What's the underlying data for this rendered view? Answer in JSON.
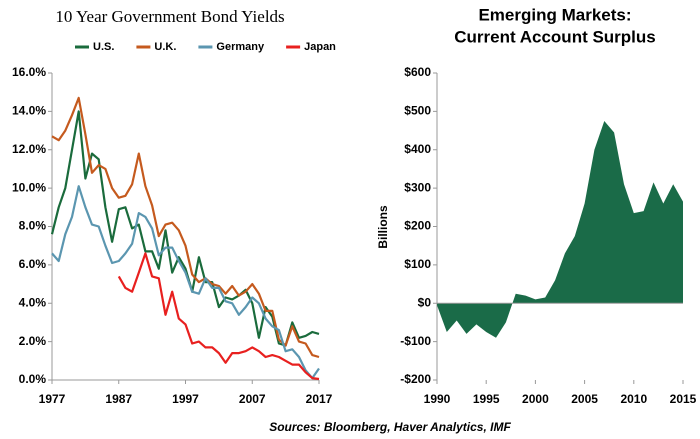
{
  "chart_data": [
    {
      "type": "line",
      "title": "10 Year Government Bond Yields",
      "x": [
        1977,
        1978,
        1979,
        1980,
        1981,
        1982,
        1983,
        1984,
        1985,
        1986,
        1987,
        1988,
        1989,
        1990,
        1991,
        1992,
        1993,
        1994,
        1995,
        1996,
        1997,
        1998,
        1999,
        2000,
        2001,
        2002,
        2003,
        2004,
        2005,
        2006,
        2007,
        2008,
        2009,
        2010,
        2011,
        2012,
        2013,
        2014,
        2015,
        2016,
        2017
      ],
      "xlim": [
        1977,
        2017
      ],
      "xticks": [
        1977,
        1987,
        1997,
        2007,
        2017
      ],
      "ylim": [
        0,
        16
      ],
      "yticks": [
        {
          "value": 0,
          "label": "0.0%"
        },
        {
          "value": 2,
          "label": "2.0%"
        },
        {
          "value": 4,
          "label": "4.0%"
        },
        {
          "value": 6,
          "label": "6.0%"
        },
        {
          "value": 8,
          "label": "8.0%"
        },
        {
          "value": 10,
          "label": "10.0%"
        },
        {
          "value": 12,
          "label": "12.0%"
        },
        {
          "value": 14,
          "label": "14.0%"
        },
        {
          "value": 16,
          "label": "16.0%"
        }
      ],
      "legend": "top",
      "series": [
        {
          "name": "U.S.",
          "color": "#1a6b3c",
          "values": [
            7.6,
            9.0,
            10.0,
            12.0,
            14.0,
            10.5,
            11.8,
            11.5,
            9.0,
            7.2,
            8.9,
            9.0,
            7.9,
            8.1,
            6.7,
            6.7,
            5.8,
            7.8,
            5.6,
            6.4,
            5.8,
            4.6,
            6.4,
            5.1,
            5.1,
            3.8,
            4.3,
            4.2,
            4.4,
            4.7,
            4.0,
            2.2,
            3.8,
            3.3,
            1.9,
            1.8,
            3.0,
            2.2,
            2.3,
            2.5,
            2.4
          ]
        },
        {
          "name": "U.K.",
          "color": "#c55a1e",
          "values": [
            12.7,
            12.5,
            13.0,
            13.8,
            14.7,
            12.8,
            10.8,
            11.2,
            11.0,
            10.0,
            9.5,
            9.6,
            10.2,
            11.8,
            10.1,
            9.1,
            7.5,
            8.1,
            8.2,
            7.8,
            7.0,
            5.5,
            5.1,
            5.3,
            5.0,
            4.9,
            4.5,
            4.9,
            4.4,
            4.6,
            5.0,
            4.5,
            3.6,
            3.6,
            2.1,
            1.8,
            2.8,
            2.0,
            1.9,
            1.3,
            1.2
          ]
        },
        {
          "name": "Germany",
          "color": "#5b96b0",
          "values": [
            6.6,
            6.2,
            7.6,
            8.5,
            10.1,
            9.0,
            8.1,
            8.0,
            7.0,
            6.1,
            6.2,
            6.6,
            7.1,
            8.7,
            8.5,
            7.9,
            6.5,
            6.9,
            6.9,
            6.2,
            5.6,
            4.6,
            4.5,
            5.3,
            4.8,
            4.8,
            4.1,
            4.0,
            3.4,
            3.8,
            4.3,
            4.0,
            3.2,
            2.8,
            2.6,
            1.5,
            1.6,
            1.2,
            0.5,
            0.1,
            0.6
          ]
        },
        {
          "name": "Japan",
          "color": "#e8201f",
          "values": [
            null,
            null,
            null,
            null,
            null,
            null,
            null,
            null,
            null,
            null,
            5.4,
            4.8,
            4.6,
            5.6,
            6.6,
            5.4,
            5.3,
            3.4,
            4.6,
            3.2,
            2.9,
            1.9,
            2.0,
            1.7,
            1.7,
            1.4,
            0.9,
            1.4,
            1.4,
            1.5,
            1.7,
            1.5,
            1.2,
            1.3,
            1.2,
            1.0,
            0.8,
            0.8,
            0.4,
            0.1,
            0.05
          ]
        }
      ]
    },
    {
      "type": "area",
      "title": [
        "Emerging Markets:",
        "Current Account Surplus"
      ],
      "y_label": "Billions",
      "x": [
        1990,
        1991,
        1992,
        1993,
        1994,
        1995,
        1996,
        1997,
        1998,
        1999,
        2000,
        2001,
        2002,
        2003,
        2004,
        2005,
        2006,
        2007,
        2008,
        2009,
        2010,
        2011,
        2012,
        2013,
        2014,
        2015
      ],
      "values": [
        -5,
        -75,
        -45,
        -80,
        -55,
        -75,
        -90,
        -50,
        25,
        20,
        10,
        15,
        60,
        130,
        175,
        260,
        400,
        475,
        445,
        310,
        235,
        240,
        315,
        260,
        310,
        265
      ],
      "color": "#1a6b48",
      "xlim": [
        1990,
        2015
      ],
      "xticks": [
        1990,
        1995,
        2000,
        2005,
        2010,
        2015
      ],
      "ylim": [
        -200,
        600
      ],
      "yticks": [
        {
          "value": -200,
          "label": "-$200"
        },
        {
          "value": -100,
          "label": "-$100"
        },
        {
          "value": 0,
          "label": "$0"
        },
        {
          "value": 100,
          "label": "$100"
        },
        {
          "value": 200,
          "label": "$200"
        },
        {
          "value": 300,
          "label": "$300"
        },
        {
          "value": 400,
          "label": "$400"
        },
        {
          "value": 500,
          "label": "$500"
        },
        {
          "value": 600,
          "label": "$600"
        }
      ]
    }
  ],
  "source": "Sources: Bloomberg, Haver Analytics, IMF"
}
